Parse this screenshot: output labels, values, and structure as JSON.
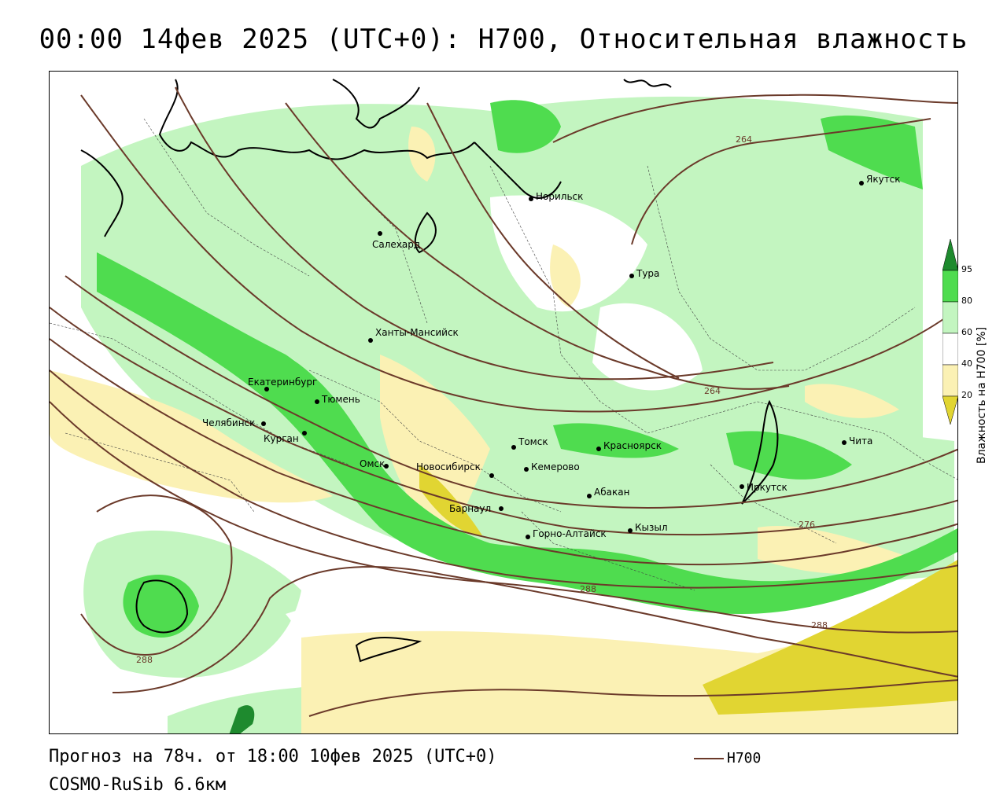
{
  "title": "00:00 14фев 2025 (UTC+0): H700, Относительная влажность",
  "footer": {
    "forecast": "Прогноз на 78ч. от 18:00 10фев 2025 (UTC+0)",
    "model": "COSMO-RuSib 6.6км"
  },
  "legend": {
    "line_label": "H700",
    "line_color": "#6b3a2a"
  },
  "colorbar": {
    "title": "Влажность на H700 [%]",
    "ticks": [
      "95",
      "80",
      "60",
      "40",
      "20"
    ],
    "colors": {
      "gt95": "#1e8a2e",
      "80_95": "#4fdc4f",
      "60_80": "#c3f5c0",
      "40_60": "#ffffff",
      "20_40": "#fbf1b4",
      "lt20": "#e1d532"
    }
  },
  "cities": [
    "Норильск",
    "Якутск",
    "Салехард",
    "Тура",
    "Ханты-Мансийск",
    "Екатеринбург",
    "Тюмень",
    "Челябинск",
    "Курган",
    "Омск",
    "Новосибирск",
    "Томск",
    "Красноярск",
    "Кемерово",
    "Абакан",
    "Барнаул",
    "Горно-Алтайск",
    "Кызыл",
    "Иркутск",
    "Чита"
  ],
  "contour_labels": [
    "264",
    "264",
    "276",
    "288",
    "288",
    "288"
  ]
}
